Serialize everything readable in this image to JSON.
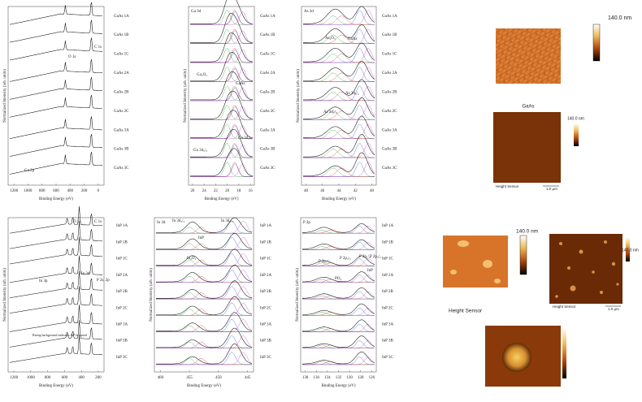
{
  "panels": [
    {
      "ylabel": "Normalized Intensity (arb. units)",
      "xlabel": "Binding Energy (eV)",
      "xticks": [
        1200,
        1000,
        800,
        600,
        400,
        200,
        0
      ],
      "samples": [
        "GaAs 1A",
        "GaAs 1B",
        "GaAs 1C",
        "GaAs 2A",
        "GaAs 2B",
        "GaAs 2C",
        "GaAs 3A",
        "GaAs 3B",
        "GaAs 3C"
      ],
      "annotations": [
        "O 1s",
        "C 1s",
        "Ga 2p"
      ]
    },
    {
      "title": "Ga 3d",
      "ylabel": "Normalized Intensity (arb. units)",
      "xlabel": "Binding Energy (eV)",
      "xticks": [
        26,
        24,
        22,
        20,
        18,
        16
      ],
      "samples": [
        "GaAs 1A",
        "GaAs 1B",
        "GaAs 1C",
        "GaAs 2A",
        "GaAs 2B",
        "GaAs 2C",
        "GaAs 3A",
        "GaAs 3B",
        "GaAs 3C"
      ],
      "annotations": [
        "Ga₂O₃",
        "GaAs",
        "Ga 3d₃/₂",
        "Ga 3d₅/₂"
      ]
    },
    {
      "title": "As 3d",
      "ylabel": "Normalized Intensity (arb. units)",
      "xlabel": "Binding Energy (eV)",
      "xticks": [
        48,
        46,
        44,
        42,
        40
      ],
      "samples": [
        "GaAs 1A",
        "GaAs 1B",
        "GaAs 1C",
        "GaAs 2A",
        "GaAs 2B",
        "GaAs 2C",
        "GaAs 3A",
        "GaAs 3B",
        "GaAs 3C"
      ],
      "annotations": [
        "As₂O₃",
        "GaAs",
        "As 3d₅/₂",
        "As 3d₃/₂"
      ]
    },
    {
      "ylabel": "Normalized Intensity (arb. units)",
      "xlabel": "Binding Energy (eV)",
      "xticks": [
        1200,
        1000,
        800,
        600,
        400,
        200
      ],
      "samples": [
        "InP 1A",
        "InP 1B",
        "InP 1C",
        "InP 2A",
        "InP 2B",
        "InP 2C",
        "InP 3A",
        "InP 3B",
        "InP 3C"
      ],
      "annotations": [
        "O 1s",
        "C 1s",
        "In 3p",
        "In 3d",
        "P 2s, 2p",
        "Rising background indicates InP is buried"
      ]
    },
    {
      "title": "In 3d",
      "ylabel": "Normalized Intensity (arb. units)",
      "xlabel": "Binding Energy (eV)",
      "xticks": [
        460,
        455,
        450,
        445
      ],
      "samples": [
        "InP 1A",
        "InP 1B",
        "InP 1C",
        "InP 2A",
        "InP 2B",
        "InP 2C",
        "InP 3A",
        "InP 3B",
        "InP 3C"
      ],
      "annotations": [
        "In 3d₃/₂",
        "In 3d₅/₂",
        "InP",
        "In₂O₃"
      ]
    },
    {
      "title": "P 2p",
      "ylabel": "Normalized Intensity (arb. units)",
      "xlabel": "Binding Energy (eV)",
      "xticks": [
        138,
        136,
        134,
        132,
        130,
        128,
        126
      ],
      "samples": [
        "InP 1A",
        "InP 1B",
        "InP 1C",
        "InP 2A",
        "InP 2B",
        "InP 2C",
        "InP 3A",
        "InP 3B",
        "InP 3C"
      ],
      "annotations": [
        "P 2p₁/₂",
        "P 2p₃/₂",
        "P 2p₁/₂",
        "P 2p₃/₂",
        "PO₄",
        "InP"
      ]
    }
  ],
  "afm": [
    "140.0 nm",
    "GaAs",
    "140.0 nm",
    "Height Sensor",
    "1.0 µm",
    "140.0 nm",
    "Height Sensor",
    "140.0 nm",
    "Height Sensor",
    "1.0 µm"
  ]
}
